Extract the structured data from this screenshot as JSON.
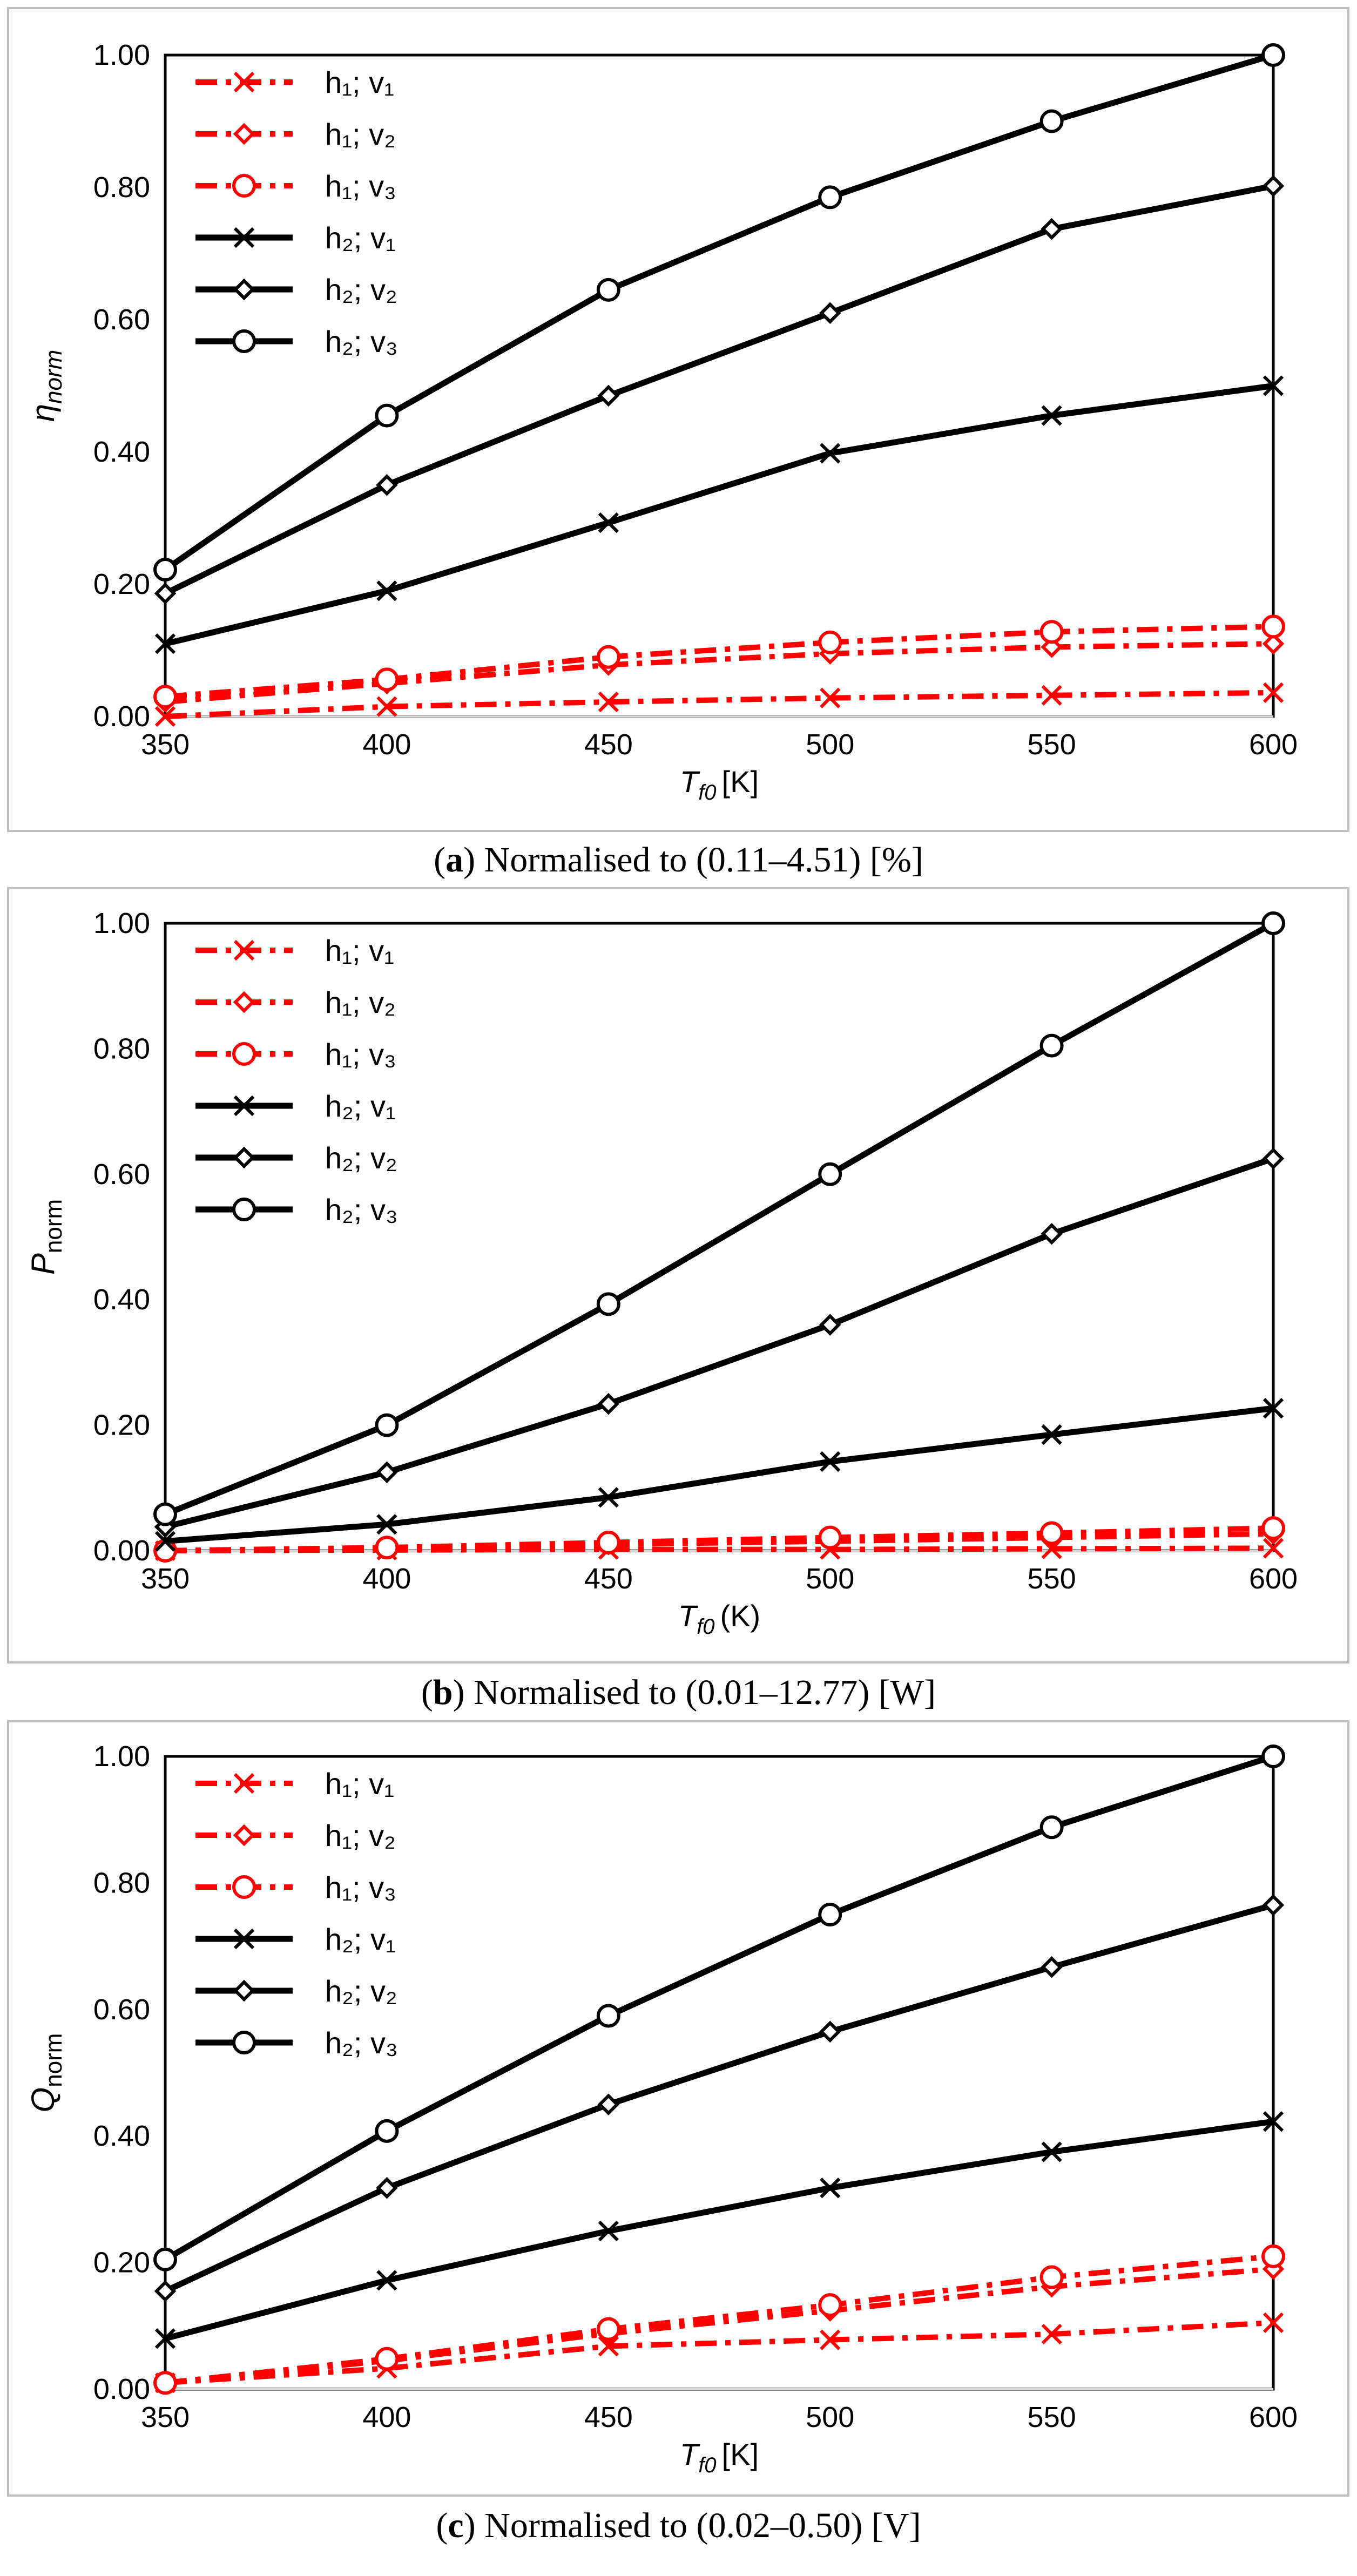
{
  "colors": {
    "red": "#ff0000",
    "black": "#000000",
    "frame": "#bfbfbf",
    "axis": "#d9d9d9"
  },
  "chart_data": [
    {
      "type": "line",
      "panel_label": "a",
      "caption": "Normalised to (0.11–4.51) [%]",
      "ylabel": {
        "main": "η",
        "sub": "norm",
        "style": "italic-main-italic-sub"
      },
      "xlabel": {
        "main": "T",
        "sub": "f0",
        "unit": "[K]"
      },
      "x": [
        350,
        400,
        450,
        500,
        550,
        600
      ],
      "x_ticks": [
        "350",
        "400",
        "450",
        "500",
        "550",
        "600"
      ],
      "ylim": [
        0,
        1
      ],
      "y_ticks": [
        "0.00",
        "0.20",
        "0.40",
        "0.60",
        "0.80",
        "1.00"
      ],
      "legend": "top-left",
      "series": [
        {
          "name": "h₁; v₁",
          "color": "red",
          "dash": "dashdot",
          "marker": "x",
          "values": [
            0.0,
            0.015,
            0.022,
            0.028,
            0.032,
            0.036
          ]
        },
        {
          "name": "h₁; v₂",
          "color": "red",
          "dash": "dashdot",
          "marker": "diamond",
          "values": [
            0.022,
            0.05,
            0.078,
            0.095,
            0.105,
            0.11
          ]
        },
        {
          "name": "h₁; v₃",
          "color": "red",
          "dash": "dashdot",
          "marker": "circle",
          "values": [
            0.03,
            0.056,
            0.09,
            0.112,
            0.128,
            0.136
          ]
        },
        {
          "name": "h₂; v₁",
          "color": "black",
          "dash": "solid",
          "marker": "x",
          "values": [
            0.11,
            0.19,
            0.293,
            0.398,
            0.455,
            0.5
          ]
        },
        {
          "name": "h₂; v₂",
          "color": "black",
          "dash": "solid",
          "marker": "diamond",
          "values": [
            0.186,
            0.35,
            0.485,
            0.61,
            0.737,
            0.802
          ]
        },
        {
          "name": "h₂; v₃",
          "color": "black",
          "dash": "solid",
          "marker": "circle",
          "values": [
            0.222,
            0.455,
            0.645,
            0.785,
            0.9,
            1.0
          ]
        }
      ]
    },
    {
      "type": "line",
      "panel_label": "b",
      "caption": "Normalised to (0.01–12.77) [W]",
      "ylabel": {
        "main": "P",
        "sub": "norm",
        "style": "italic-main-upright-sub"
      },
      "xlabel": {
        "main": "T",
        "sub": "f0",
        "unit": "(K)"
      },
      "x": [
        350,
        400,
        450,
        500,
        550,
        600
      ],
      "x_ticks": [
        "350",
        "400",
        "450",
        "500",
        "550",
        "600"
      ],
      "ylim": [
        0,
        1
      ],
      "y_ticks": [
        "0.00",
        "0.20",
        "0.40",
        "0.60",
        "0.80",
        "1.00"
      ],
      "legend": "top-left",
      "series": [
        {
          "name": "h₁; v₁",
          "color": "red",
          "dash": "dashdot",
          "marker": "x",
          "values": [
            0.0,
            0.001,
            0.002,
            0.002,
            0.003,
            0.004
          ]
        },
        {
          "name": "h₁; v₂",
          "color": "red",
          "dash": "dashdot",
          "marker": "diamond",
          "values": [
            0.0,
            0.004,
            0.01,
            0.015,
            0.021,
            0.027
          ]
        },
        {
          "name": "h₁; v₃",
          "color": "red",
          "dash": "dashdot",
          "marker": "circle",
          "values": [
            0.0,
            0.005,
            0.013,
            0.021,
            0.028,
            0.036
          ]
        },
        {
          "name": "h₂; v₁",
          "color": "black",
          "dash": "solid",
          "marker": "x",
          "values": [
            0.015,
            0.042,
            0.085,
            0.142,
            0.185,
            0.227
          ]
        },
        {
          "name": "h₂; v₂",
          "color": "black",
          "dash": "solid",
          "marker": "diamond",
          "values": [
            0.038,
            0.125,
            0.234,
            0.36,
            0.505,
            0.625
          ]
        },
        {
          "name": "h₂; v₃",
          "color": "black",
          "dash": "solid",
          "marker": "circle",
          "values": [
            0.058,
            0.2,
            0.393,
            0.6,
            0.805,
            1.0
          ]
        }
      ]
    },
    {
      "type": "line",
      "panel_label": "c",
      "caption": "Normalised to (0.02–0.50) [V]",
      "ylabel": {
        "main": "Q",
        "sub": "norm",
        "style": "italic-main-upright-sub"
      },
      "xlabel": {
        "main": "T",
        "sub": "f0",
        "unit": "[K]"
      },
      "x": [
        350,
        400,
        450,
        500,
        550,
        600
      ],
      "x_ticks": [
        "350",
        "400",
        "450",
        "500",
        "550",
        "600"
      ],
      "ylim": [
        0,
        1
      ],
      "y_ticks": [
        "0.00",
        "0.20",
        "0.40",
        "0.60",
        "0.80",
        "1.00"
      ],
      "legend": "top-left",
      "series": [
        {
          "name": "h₁; v₁",
          "color": "red",
          "dash": "dashdot",
          "marker": "x",
          "values": [
            0.01,
            0.033,
            0.068,
            0.078,
            0.087,
            0.105
          ]
        },
        {
          "name": "h₁; v₂",
          "color": "red",
          "dash": "dashdot",
          "marker": "diamond",
          "values": [
            0.01,
            0.045,
            0.088,
            0.124,
            0.162,
            0.19
          ]
        },
        {
          "name": "h₁; v₃",
          "color": "red",
          "dash": "dashdot",
          "marker": "circle",
          "values": [
            0.01,
            0.048,
            0.095,
            0.133,
            0.177,
            0.21
          ]
        },
        {
          "name": "h₂; v₁",
          "color": "black",
          "dash": "solid",
          "marker": "x",
          "values": [
            0.08,
            0.172,
            0.25,
            0.318,
            0.375,
            0.423
          ]
        },
        {
          "name": "h₂; v₂",
          "color": "black",
          "dash": "solid",
          "marker": "diamond",
          "values": [
            0.155,
            0.318,
            0.45,
            0.565,
            0.667,
            0.765
          ]
        },
        {
          "name": "h₂; v₃",
          "color": "black",
          "dash": "solid",
          "marker": "circle",
          "values": [
            0.205,
            0.408,
            0.59,
            0.75,
            0.888,
            1.0
          ]
        }
      ]
    }
  ]
}
